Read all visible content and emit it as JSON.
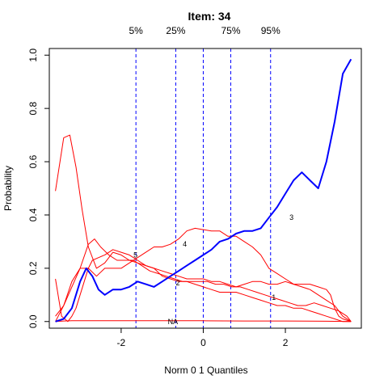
{
  "chart_data": {
    "type": "line",
    "title": "Item:  34",
    "xlabel": "Norm 0 1 Quantiles",
    "ylabel": "Probability",
    "xlim": [
      -3.75,
      3.85
    ],
    "ylim": [
      -0.025,
      1.025
    ],
    "x_ticks": [
      -2,
      0,
      2
    ],
    "x_tick_labels": [
      "-2",
      "0",
      "2"
    ],
    "y_ticks": [
      0.0,
      0.2,
      0.4,
      0.6,
      0.8,
      1.0
    ],
    "y_tick_labels": [
      "0.0",
      "0.2",
      "0.4",
      "0.6",
      "0.8",
      "1.0"
    ],
    "grid": false,
    "legend": "none",
    "quantile_lines": [
      {
        "label": "5%",
        "x": -1.64
      },
      {
        "label": "25%",
        "x": -0.67
      },
      {
        "label": "",
        "x": 0.0
      },
      {
        "label": "75%",
        "x": 0.67
      },
      {
        "label": "95%",
        "x": 1.64
      }
    ],
    "series": [
      {
        "label": "3",
        "role": "key",
        "color": "#0000ff",
        "label_pos": [
          2.15,
          0.39
        ],
        "x": [
          -3.6,
          -3.4,
          -3.2,
          -3.0,
          -2.85,
          -2.7,
          -2.55,
          -2.4,
          -2.2,
          -2.0,
          -1.8,
          -1.6,
          -1.4,
          -1.2,
          -1.0,
          -0.8,
          -0.6,
          -0.4,
          -0.2,
          0.0,
          0.2,
          0.4,
          0.6,
          0.8,
          1.0,
          1.2,
          1.4,
          1.6,
          1.8,
          2.0,
          2.2,
          2.4,
          2.6,
          2.8,
          3.0,
          3.2,
          3.4,
          3.6
        ],
        "y": [
          0.0,
          0.01,
          0.05,
          0.15,
          0.2,
          0.17,
          0.12,
          0.1,
          0.12,
          0.12,
          0.13,
          0.15,
          0.14,
          0.13,
          0.15,
          0.17,
          0.19,
          0.21,
          0.23,
          0.25,
          0.27,
          0.3,
          0.31,
          0.33,
          0.34,
          0.34,
          0.35,
          0.39,
          0.43,
          0.48,
          0.53,
          0.56,
          0.53,
          0.5,
          0.6,
          0.75,
          0.93,
          0.985
        ]
      },
      {
        "label": "4",
        "role": "distractor",
        "color": "#ff0000",
        "label_pos": [
          -0.45,
          0.29
        ],
        "x": [
          -3.6,
          -3.4,
          -3.2,
          -3.0,
          -2.8,
          -2.6,
          -2.4,
          -2.2,
          -2.0,
          -1.8,
          -1.6,
          -1.4,
          -1.2,
          -1.0,
          -0.8,
          -0.6,
          -0.4,
          -0.2,
          0.0,
          0.2,
          0.4,
          0.6,
          0.8,
          1.0,
          1.2,
          1.4,
          1.6,
          1.8,
          2.0,
          2.2,
          2.4,
          2.6,
          2.8,
          3.0,
          3.2,
          3.4,
          3.6
        ],
        "y": [
          0.0,
          0.06,
          0.15,
          0.2,
          0.2,
          0.17,
          0.2,
          0.2,
          0.2,
          0.22,
          0.24,
          0.26,
          0.28,
          0.28,
          0.29,
          0.31,
          0.34,
          0.35,
          0.345,
          0.34,
          0.34,
          0.32,
          0.32,
          0.3,
          0.28,
          0.25,
          0.2,
          0.18,
          0.16,
          0.14,
          0.13,
          0.12,
          0.1,
          0.08,
          0.06,
          0.02,
          0.0
        ]
      },
      {
        "label": "5",
        "role": "distractor",
        "color": "#ff0000",
        "label_pos": [
          -1.65,
          0.25
        ],
        "x": [
          -3.6,
          -3.4,
          -3.25,
          -3.1,
          -2.95,
          -2.8,
          -2.6,
          -2.4,
          -2.2,
          -2.0,
          -1.8,
          -1.6,
          -1.4,
          -1.2,
          -1.0,
          -0.8,
          -0.6,
          -0.4,
          -0.2,
          0.0,
          0.2,
          0.4,
          0.6,
          0.8,
          1.0,
          1.2,
          1.4,
          1.6,
          1.8,
          2.0,
          2.2,
          2.4,
          2.6,
          2.8,
          3.0,
          3.2,
          3.4,
          3.6
        ],
        "y": [
          0.49,
          0.69,
          0.7,
          0.58,
          0.42,
          0.28,
          0.2,
          0.22,
          0.26,
          0.25,
          0.23,
          0.22,
          0.21,
          0.2,
          0.17,
          0.16,
          0.15,
          0.15,
          0.14,
          0.13,
          0.12,
          0.11,
          0.11,
          0.11,
          0.1,
          0.09,
          0.08,
          0.07,
          0.06,
          0.06,
          0.05,
          0.05,
          0.04,
          0.03,
          0.02,
          0.01,
          0.0,
          0.0
        ]
      },
      {
        "label": "2",
        "role": "distractor",
        "color": "#ff0000",
        "label_pos": [
          -0.62,
          0.145
        ],
        "x": [
          -3.6,
          -3.4,
          -3.2,
          -3.0,
          -2.8,
          -2.65,
          -2.5,
          -2.3,
          -2.1,
          -1.9,
          -1.7,
          -1.5,
          -1.3,
          -1.1,
          -0.9,
          -0.7,
          -0.5,
          -0.3,
          -0.1,
          0.1,
          0.3,
          0.5,
          0.7,
          0.9,
          1.1,
          1.3,
          1.5,
          1.7,
          1.9,
          2.1,
          2.3,
          2.5,
          2.7,
          2.9,
          3.1,
          3.3,
          3.5,
          3.6
        ],
        "y": [
          0.02,
          0.06,
          0.13,
          0.2,
          0.29,
          0.31,
          0.28,
          0.25,
          0.23,
          0.23,
          0.23,
          0.21,
          0.19,
          0.18,
          0.17,
          0.16,
          0.15,
          0.15,
          0.15,
          0.15,
          0.14,
          0.14,
          0.13,
          0.13,
          0.12,
          0.11,
          0.1,
          0.09,
          0.08,
          0.07,
          0.06,
          0.06,
          0.07,
          0.06,
          0.05,
          0.04,
          0.02,
          0.0
        ]
      },
      {
        "label": "1",
        "role": "distractor",
        "color": "#ff0000",
        "label_pos": [
          1.72,
          0.09
        ],
        "x": [
          -3.6,
          -3.45,
          -3.3,
          -3.2,
          -3.1,
          -3.0,
          -2.9,
          -2.8,
          -2.7,
          -2.55,
          -2.4,
          -2.2,
          -2.0,
          -1.8,
          -1.6,
          -1.4,
          -1.2,
          -1.0,
          -0.8,
          -0.6,
          -0.4,
          -0.2,
          0.0,
          0.2,
          0.4,
          0.6,
          0.8,
          1.0,
          1.2,
          1.4,
          1.6,
          1.8,
          2.0,
          2.2,
          2.4,
          2.6,
          2.8,
          3.0,
          3.1,
          3.2,
          3.3,
          3.4,
          3.6
        ],
        "y": [
          0.16,
          0.02,
          0.0,
          0.02,
          0.05,
          0.1,
          0.15,
          0.2,
          0.23,
          0.24,
          0.25,
          0.27,
          0.26,
          0.25,
          0.23,
          0.21,
          0.2,
          0.19,
          0.18,
          0.17,
          0.16,
          0.16,
          0.16,
          0.15,
          0.15,
          0.14,
          0.13,
          0.14,
          0.15,
          0.15,
          0.14,
          0.14,
          0.15,
          0.14,
          0.14,
          0.14,
          0.13,
          0.12,
          0.1,
          0.05,
          0.02,
          0.01,
          0.0
        ]
      },
      {
        "label": "NA",
        "role": "missing",
        "color": "#ff0000",
        "label_pos": [
          -0.74,
          0.0
        ],
        "x": [
          -3.6,
          -3.4,
          -3.2,
          -3.0,
          -2.6,
          -2.0,
          -1.0,
          0.0,
          1.0,
          2.0,
          3.0,
          3.6
        ],
        "y": [
          0.0,
          0.002,
          0.003,
          0.003,
          0.003,
          0.003,
          0.003,
          0.003,
          0.002,
          0.002,
          0.001,
          0.0
        ]
      }
    ]
  }
}
